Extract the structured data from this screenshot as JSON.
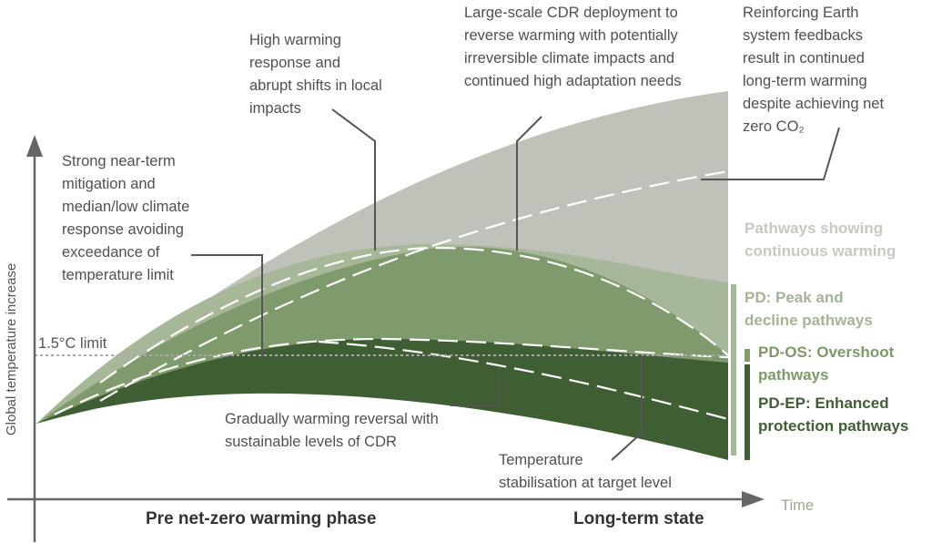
{
  "axes": {
    "y_label": "Global temperature increase",
    "x_label": "Time",
    "limit_label": "1.5°C limit"
  },
  "phases": [
    "Pre net-zero warming phase",
    "Long-term state"
  ],
  "annotations": [
    {
      "lines": [
        "Strong near-term",
        "mitigation and",
        "median/low climate",
        "response avoiding",
        "exceedance of",
        "temperature limit"
      ]
    },
    {
      "lines": [
        "High warming",
        "response and",
        "abrupt shifts in local",
        "impacts"
      ]
    },
    {
      "lines": [
        "Large-scale CDR deployment to",
        "reverse warming with potentially",
        "irreversible climate impacts and",
        "continued high adaptation needs"
      ]
    },
    {
      "lines": [
        "Reinforcing Earth",
        "system feedbacks",
        "result in continued",
        "long-term warming",
        "despite achieving net",
        "zero CO₂"
      ]
    },
    {
      "lines": [
        "Gradually warming reversal with",
        "sustainable levels of CDR"
      ]
    },
    {
      "lines": [
        "Temperature",
        "stabilisation at target level"
      ]
    }
  ],
  "legend": [
    {
      "lines": [
        "Pathways showing",
        "continuous warming"
      ]
    },
    {
      "lines": [
        "PD:  Peak and",
        "decline pathways"
      ]
    },
    {
      "lines": [
        "PD-OS: Overshoot",
        "pathways"
      ]
    },
    {
      "lines": [
        "PD-EP: Enhanced",
        "protection pathways"
      ]
    }
  ]
}
